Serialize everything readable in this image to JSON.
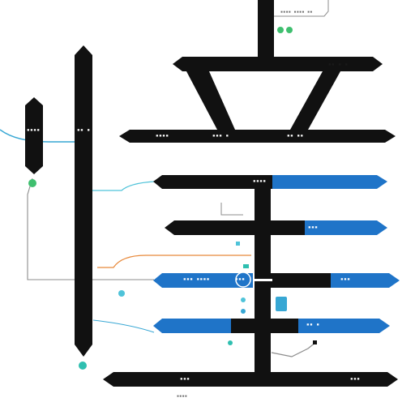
{
  "colors": {
    "bar": "#111111",
    "blue": "#1f74c8",
    "teal": "#4fc3d9",
    "cyan_line": "#37a7d4",
    "orange_line": "#e8893a",
    "gray_line": "#8c8c8c",
    "green_node": "#3fbf6f",
    "teal_node": "#2fbfb0"
  },
  "labels": {
    "top_note": "▪▪▪▪ ▪▪▪▪ ▪▪",
    "top_right_tab": "▪▪ ▪ ▪",
    "left_tab_a": "▪▪▪▪ ▪",
    "left_tab_b": "▪▪ ▪",
    "row1_left": "▪▪▪▪",
    "row1_mid": "▪▪▪ ▪",
    "row1_right": "▪▪ ▪▪",
    "row2_left": "▪▪▪▪",
    "row3_right": "▪▪▪",
    "row4_left": "▪▪▪ ▪▪▪▪",
    "row4_mid": "▪▪▪",
    "row4_right": "▪▪▪",
    "row5_right": "▪▪ ▪",
    "bottom_left": "▪▪▪",
    "bottom_right": "▪▪▪",
    "bottom_note": "▪▪▪▪"
  }
}
